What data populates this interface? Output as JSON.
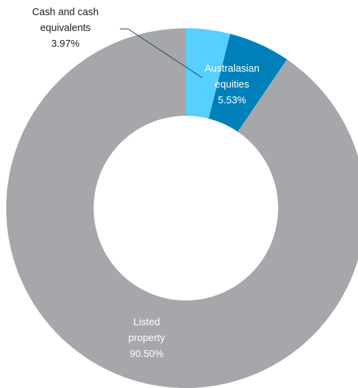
{
  "chart_data": {
    "type": "pie",
    "title": "",
    "series": [
      {
        "name": "Cash and cash equivalents",
        "value": 3.97,
        "label_lines": [
          "Cash and cash",
          "equivalents"
        ],
        "value_label": "3.97%",
        "color": "#57cfff"
      },
      {
        "name": "Australasian equities",
        "value": 5.53,
        "label_lines": [
          "Australasian",
          "equities"
        ],
        "value_label": "5.53%",
        "color": "#0080b8"
      },
      {
        "name": "Listed property",
        "value": 90.5,
        "label_lines": [
          "Listed",
          "property"
        ],
        "value_label": "90.50%",
        "color": "#a6a7ab"
      }
    ],
    "legend": "none"
  }
}
